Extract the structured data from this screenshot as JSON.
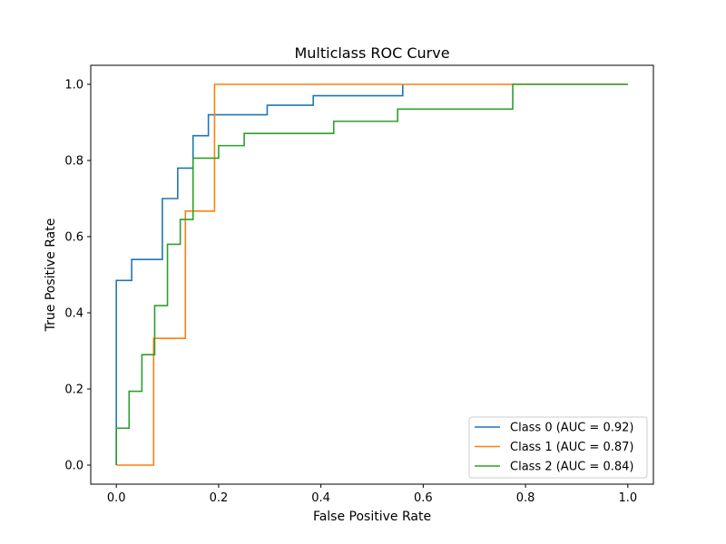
{
  "chart_data": {
    "type": "line",
    "title": "Multiclass ROC Curve",
    "xlabel": "False Positive Rate",
    "ylabel": "True Positive Rate",
    "xlim": [
      -0.05,
      1.05
    ],
    "ylim": [
      -0.05,
      1.05
    ],
    "xticks": [
      0.0,
      0.2,
      0.4,
      0.6,
      0.8,
      1.0
    ],
    "yticks": [
      0.0,
      0.2,
      0.4,
      0.6,
      0.8,
      1.0
    ],
    "xtick_labels": [
      "0.0",
      "0.2",
      "0.4",
      "0.6",
      "0.8",
      "1.0"
    ],
    "ytick_labels": [
      "0.0",
      "0.2",
      "0.4",
      "0.6",
      "0.8",
      "1.0"
    ],
    "grid": false,
    "legend_position": "lower-right",
    "series": [
      {
        "name": "Class 0 (AUC = 0.92)",
        "color": "#1f77b4",
        "x": [
          0.0,
          0.0,
          0.03,
          0.03,
          0.09,
          0.09,
          0.12,
          0.12,
          0.15,
          0.15,
          0.18,
          0.18,
          0.295,
          0.295,
          0.385,
          0.385,
          0.56,
          0.56
        ],
        "y": [
          0.0,
          0.485,
          0.485,
          0.54,
          0.54,
          0.7,
          0.7,
          0.78,
          0.78,
          0.865,
          0.865,
          0.92,
          0.92,
          0.945,
          0.945,
          0.97,
          0.97,
          1.0
        ]
      },
      {
        "name": "Class 1 (AUC = 0.87)",
        "color": "#ff7f0e",
        "x": [
          0.0,
          0.073,
          0.073,
          0.135,
          0.135,
          0.192,
          0.192,
          1.0
        ],
        "y": [
          0.0,
          0.0,
          0.333,
          0.333,
          0.667,
          0.667,
          1.0,
          1.0
        ]
      },
      {
        "name": "Class 2 (AUC = 0.84)",
        "color": "#2ca02c",
        "x": [
          0.0,
          0.0,
          0.025,
          0.025,
          0.05,
          0.05,
          0.075,
          0.075,
          0.1,
          0.1,
          0.125,
          0.125,
          0.15,
          0.15,
          0.2,
          0.2,
          0.25,
          0.25,
          0.425,
          0.425,
          0.55,
          0.55,
          0.775,
          0.775,
          1.0
        ],
        "y": [
          0.0,
          0.097,
          0.097,
          0.194,
          0.194,
          0.29,
          0.29,
          0.419,
          0.419,
          0.58,
          0.58,
          0.645,
          0.645,
          0.806,
          0.806,
          0.839,
          0.839,
          0.871,
          0.871,
          0.903,
          0.903,
          0.935,
          0.935,
          1.0,
          1.0
        ]
      }
    ]
  }
}
